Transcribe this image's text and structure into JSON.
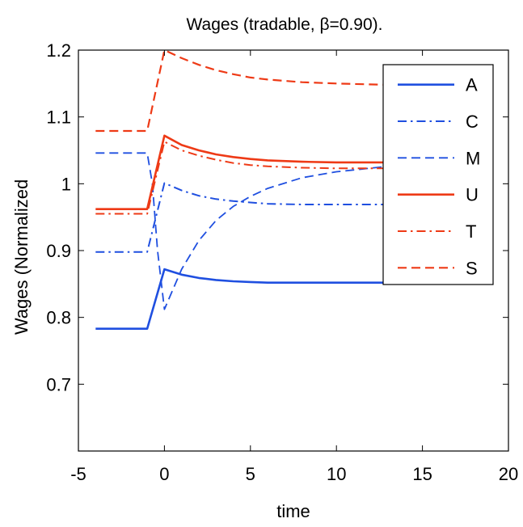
{
  "chart_data": {
    "type": "line",
    "title": "Wages (tradable, β=0.90).",
    "xlabel": "time",
    "ylabel": "Wages (Normalized",
    "xlim": [
      -5,
      20
    ],
    "ylim": [
      0.6,
      1.2
    ],
    "xticks": [
      -5,
      0,
      5,
      10,
      15,
      20
    ],
    "yticks": [
      0.7,
      0.8,
      0.9,
      1,
      1.1,
      1.2
    ],
    "ytick_labels": [
      "0.7",
      "0.8",
      "0.9",
      "1",
      "1.1",
      "1.2"
    ],
    "grid": false,
    "legend_position": "top-right",
    "series": [
      {
        "name": "A",
        "color": "#1f4fe0",
        "style": "solid",
        "width": 2.6,
        "x": [
          -4,
          -1,
          0,
          1,
          2,
          3,
          4,
          5,
          6,
          8,
          10,
          13
        ],
        "y": [
          0.783,
          0.783,
          0.872,
          0.864,
          0.859,
          0.856,
          0.854,
          0.853,
          0.852,
          0.852,
          0.852,
          0.852
        ]
      },
      {
        "name": "C",
        "color": "#1f4fe0",
        "style": "dashdot",
        "width": 2.0,
        "x": [
          -4,
          -1,
          0,
          1,
          2,
          3,
          4,
          5,
          6,
          8,
          10,
          13
        ],
        "y": [
          0.898,
          0.898,
          1.001,
          0.99,
          0.982,
          0.977,
          0.974,
          0.972,
          0.97,
          0.969,
          0.969,
          0.969
        ]
      },
      {
        "name": "M",
        "color": "#1f4fe0",
        "style": "dashed",
        "width": 1.8,
        "x": [
          -4,
          -1,
          -0.7,
          -0.4,
          0,
          1,
          2,
          3,
          4,
          5,
          6,
          8,
          10,
          13
        ],
        "y": [
          1.046,
          1.046,
          1.0,
          0.9,
          0.812,
          0.872,
          0.915,
          0.945,
          0.966,
          0.981,
          0.993,
          1.009,
          1.018,
          1.026
        ]
      },
      {
        "name": "U",
        "color": "#ee3a16",
        "style": "solid",
        "width": 2.6,
        "x": [
          -4,
          -1,
          0,
          1,
          2,
          3,
          4,
          5,
          6,
          8,
          10,
          13
        ],
        "y": [
          0.962,
          0.962,
          1.072,
          1.058,
          1.05,
          1.044,
          1.04,
          1.037,
          1.035,
          1.033,
          1.032,
          1.032
        ]
      },
      {
        "name": "T",
        "color": "#ee3a16",
        "style": "dashdot",
        "width": 2.0,
        "x": [
          -4,
          -1,
          0,
          1,
          2,
          3,
          4,
          5,
          6,
          8,
          10,
          13
        ],
        "y": [
          0.955,
          0.955,
          1.063,
          1.05,
          1.042,
          1.036,
          1.031,
          1.028,
          1.026,
          1.024,
          1.023,
          1.023
        ]
      },
      {
        "name": "S",
        "color": "#ee3a16",
        "style": "dashed",
        "width": 2.2,
        "x": [
          -4,
          -1,
          0,
          1,
          2,
          3,
          4,
          5,
          6,
          8,
          10,
          13
        ],
        "y": [
          1.079,
          1.079,
          1.2,
          1.188,
          1.178,
          1.17,
          1.164,
          1.159,
          1.156,
          1.152,
          1.15,
          1.148
        ]
      }
    ]
  }
}
